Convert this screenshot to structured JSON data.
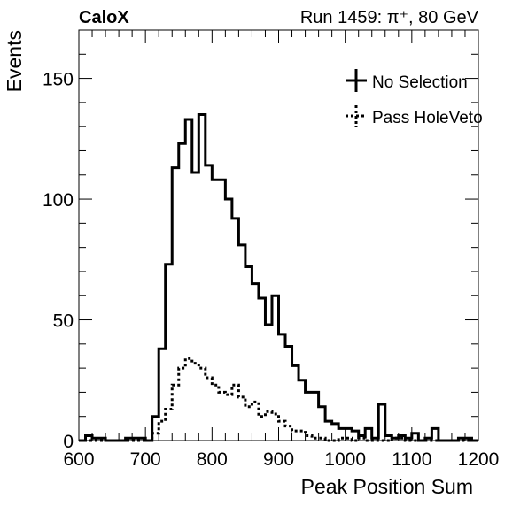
{
  "chart_data": {
    "type": "histogram",
    "title_left": "CaloX",
    "title_right": "Run 1459: π⁺, 80 GeV",
    "xlabel": "Peak Position Sum",
    "ylabel": "Events",
    "xlim": [
      600,
      1200
    ],
    "ylim": [
      0,
      170
    ],
    "xticks": [
      "600",
      "700",
      "800",
      "900",
      "1000",
      "1100",
      "1200"
    ],
    "yticks": [
      "0",
      "50",
      "100",
      "150"
    ],
    "bin_width": 10,
    "bin_edges_start": 600,
    "legend_position": "top-right",
    "series": [
      {
        "name": "No Selection",
        "style": "solid",
        "values": [
          0,
          2,
          1,
          1,
          0,
          0,
          0,
          1,
          1,
          1,
          0,
          10,
          38,
          73,
          113,
          123,
          133,
          111,
          135,
          114,
          108,
          108,
          100,
          92,
          81,
          72,
          65,
          59,
          48,
          60,
          44,
          39,
          31,
          25,
          20,
          20,
          14,
          8,
          7,
          5,
          5,
          4,
          2,
          5,
          1,
          15,
          2,
          1,
          2,
          1,
          3,
          0,
          1,
          5,
          0,
          0,
          0,
          1,
          1,
          0
        ],
        "color": "#000000"
      },
      {
        "name": "Pass HoleVeto",
        "style": "dotted",
        "values": [
          0,
          0,
          0,
          0,
          0,
          0,
          0,
          0,
          0,
          0,
          0,
          3,
          8,
          13,
          23,
          30,
          34,
          32,
          30,
          26,
          23,
          20,
          19,
          23,
          18,
          14,
          16,
          10,
          12,
          11,
          8,
          6,
          4,
          4,
          2,
          1,
          1,
          0,
          0,
          1,
          1,
          0,
          1,
          0,
          0,
          0,
          0,
          1,
          1,
          0,
          0,
          0,
          0,
          0,
          0,
          0,
          0,
          0,
          0,
          0
        ],
        "color": "#000000"
      }
    ]
  }
}
